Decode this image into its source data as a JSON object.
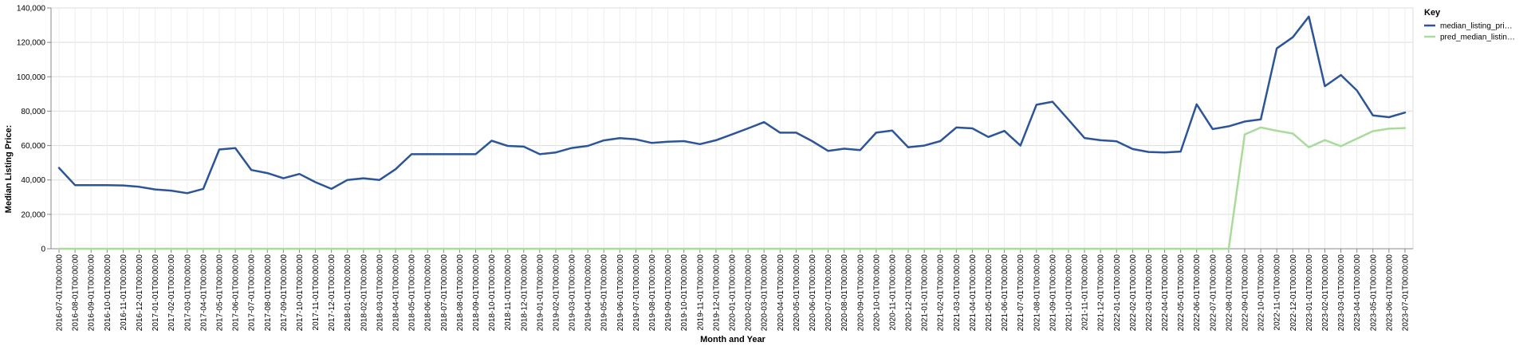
{
  "chart_data": {
    "type": "line",
    "xlabel": "Month and Year",
    "ylabel": "Median Listing Price:",
    "ylim": [
      0,
      140000
    ],
    "y_ticks": [
      0,
      20000,
      40000,
      60000,
      80000,
      100000,
      120000,
      140000
    ],
    "y_tick_labels": [
      "0",
      "20,000",
      "40,000",
      "60,000",
      "80,000",
      "100,000",
      "120,000",
      "140,000"
    ],
    "grid": true,
    "legend": {
      "title": "Key",
      "position": "right"
    },
    "x": [
      "2016-07-01T00:00:00",
      "2016-08-01T00:00:00",
      "2016-09-01T00:00:00",
      "2016-10-01T00:00:00",
      "2016-11-01T00:00:00",
      "2016-12-01T00:00:00",
      "2017-01-01T00:00:00",
      "2017-02-01T00:00:00",
      "2017-03-01T00:00:00",
      "2017-04-01T00:00:00",
      "2017-05-01T00:00:00",
      "2017-06-01T00:00:00",
      "2017-07-01T00:00:00",
      "2017-08-01T00:00:00",
      "2017-09-01T00:00:00",
      "2017-10-01T00:00:00",
      "2017-11-01T00:00:00",
      "2017-12-01T00:00:00",
      "2018-01-01T00:00:00",
      "2018-02-01T00:00:00",
      "2018-03-01T00:00:00",
      "2018-04-01T00:00:00",
      "2018-05-01T00:00:00",
      "2018-06-01T00:00:00",
      "2018-07-01T00:00:00",
      "2018-08-01T00:00:00",
      "2018-09-01T00:00:00",
      "2018-10-01T00:00:00",
      "2018-11-01T00:00:00",
      "2018-12-01T00:00:00",
      "2019-01-01T00:00:00",
      "2019-02-01T00:00:00",
      "2019-03-01T00:00:00",
      "2019-04-01T00:00:00",
      "2019-05-01T00:00:00",
      "2019-06-01T00:00:00",
      "2019-07-01T00:00:00",
      "2019-08-01T00:00:00",
      "2019-09-01T00:00:00",
      "2019-10-01T00:00:00",
      "2019-11-01T00:00:00",
      "2019-12-01T00:00:00",
      "2020-01-01T00:00:00",
      "2020-02-01T00:00:00",
      "2020-03-01T00:00:00",
      "2020-04-01T00:00:00",
      "2020-05-01T00:00:00",
      "2020-06-01T00:00:00",
      "2020-07-01T00:00:00",
      "2020-08-01T00:00:00",
      "2020-09-01T00:00:00",
      "2020-10-01T00:00:00",
      "2020-11-01T00:00:00",
      "2020-12-01T00:00:00",
      "2021-01-01T00:00:00",
      "2021-02-01T00:00:00",
      "2021-03-01T00:00:00",
      "2021-04-01T00:00:00",
      "2021-05-01T00:00:00",
      "2021-06-01T00:00:00",
      "2021-07-01T00:00:00",
      "2021-08-01T00:00:00",
      "2021-09-01T00:00:00",
      "2021-10-01T00:00:00",
      "2021-11-01T00:00:00",
      "2021-12-01T00:00:00",
      "2022-01-01T00:00:00",
      "2022-02-01T00:00:00",
      "2022-03-01T00:00:00",
      "2022-04-01T00:00:00",
      "2022-05-01T00:00:00",
      "2022-06-01T00:00:00",
      "2022-07-01T00:00:00",
      "2022-08-01T00:00:00",
      "2022-09-01T00:00:00",
      "2022-10-01T00:00:00",
      "2022-11-01T00:00:00",
      "2022-12-01T00:00:00",
      "2023-01-01T00:00:00",
      "2023-02-01T00:00:00",
      "2023-03-01T00:00:00",
      "2023-04-01T00:00:00",
      "2023-05-01T00:00:00",
      "2023-06-01T00:00:00",
      "2023-07-01T00:00:00"
    ],
    "series": [
      {
        "name": "median_listing_pri…",
        "color": "#2c5599",
        "values": [
          47000,
          37000,
          37000,
          37000,
          36800,
          36000,
          34500,
          33800,
          32300,
          34800,
          57700,
          58500,
          45800,
          44000,
          41000,
          43500,
          38700,
          34800,
          40000,
          41000,
          40000,
          46200,
          55000,
          55000,
          55000,
          55000,
          55000,
          62800,
          59800,
          59400,
          55000,
          56000,
          58600,
          59800,
          63000,
          64300,
          63600,
          61500,
          62200,
          62600,
          60800,
          63100,
          66500,
          70000,
          73600,
          67500,
          67500,
          62600,
          56900,
          58200,
          57400,
          67500,
          68700,
          59000,
          60000,
          62600,
          70500,
          70000,
          65000,
          68500,
          60000,
          83700,
          85500,
          75000,
          64400,
          63100,
          62500,
          58000,
          56300,
          56000,
          56500,
          84000,
          69600,
          71200,
          74000,
          75200,
          116500,
          123000,
          135000,
          94500,
          101000,
          92000,
          77500,
          76500,
          79200
        ]
      },
      {
        "name": "pred_median_listin…",
        "color": "#a8dc9b",
        "values": [
          0,
          0,
          0,
          0,
          0,
          0,
          0,
          0,
          0,
          0,
          0,
          0,
          0,
          0,
          0,
          0,
          0,
          0,
          0,
          0,
          0,
          0,
          0,
          0,
          0,
          0,
          0,
          0,
          0,
          0,
          0,
          0,
          0,
          0,
          0,
          0,
          0,
          0,
          0,
          0,
          0,
          0,
          0,
          0,
          0,
          0,
          0,
          0,
          0,
          0,
          0,
          0,
          0,
          0,
          0,
          0,
          0,
          0,
          0,
          0,
          0,
          0,
          0,
          0,
          0,
          0,
          0,
          0,
          0,
          0,
          0,
          0,
          0,
          0,
          66500,
          70500,
          68600,
          67000,
          59000,
          63200,
          59600,
          64000,
          68400,
          69800,
          70200
        ]
      }
    ]
  }
}
